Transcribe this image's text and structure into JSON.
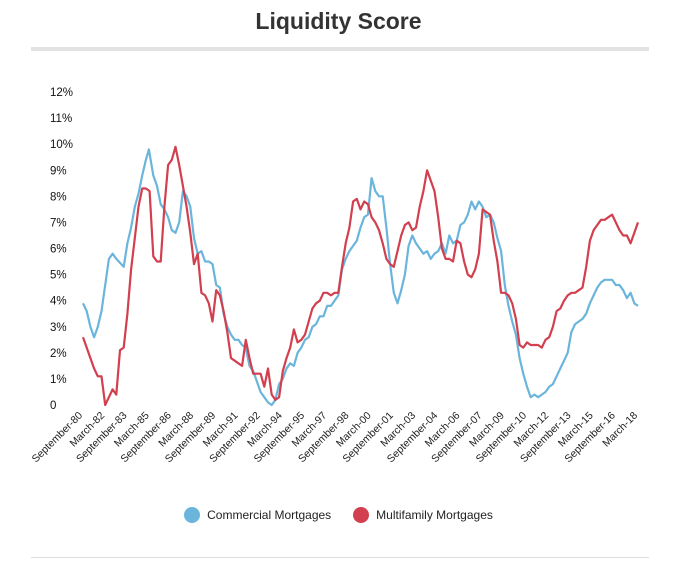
{
  "chart_data": {
    "type": "line",
    "title": "Liquidity Score",
    "xlabel": "",
    "ylabel": "",
    "ylim": [
      0,
      12
    ],
    "yticks": [
      "0",
      "1%",
      "2%",
      "3%",
      "4%",
      "5%",
      "6%",
      "7%",
      "8%",
      "9%",
      "10%",
      "11%",
      "12%"
    ],
    "xticks": [
      "September-80",
      "March-82",
      "September-83",
      "March-85",
      "September-86",
      "March-88",
      "September-89",
      "March-91",
      "September-92",
      "March-94",
      "September-95",
      "March-97",
      "September-98",
      "March-00",
      "September-01",
      "March-03",
      "September-04",
      "March-06",
      "September-07",
      "March-09",
      "September-10",
      "March-12",
      "September-13",
      "March-15",
      "September-16",
      "March-18"
    ],
    "x_range": [
      1980.75,
      2018.25
    ],
    "legend": "bottom",
    "grid": false,
    "series": [
      {
        "name": "Commercial Mortgages",
        "color": "#6bb5dc",
        "points": [
          [
            1980.75,
            3.9
          ],
          [
            1981.0,
            3.6
          ],
          [
            1981.25,
            3.0
          ],
          [
            1981.5,
            2.6
          ],
          [
            1981.75,
            3.0
          ],
          [
            1982.0,
            3.6
          ],
          [
            1982.25,
            4.6
          ],
          [
            1982.5,
            5.6
          ],
          [
            1982.75,
            5.8
          ],
          [
            1983.0,
            5.6
          ],
          [
            1983.5,
            5.3
          ],
          [
            1983.75,
            6.2
          ],
          [
            1984.0,
            6.8
          ],
          [
            1984.25,
            7.6
          ],
          [
            1984.5,
            8.1
          ],
          [
            1984.75,
            8.8
          ],
          [
            1985.0,
            9.4
          ],
          [
            1985.2,
            9.8
          ],
          [
            1985.5,
            8.8
          ],
          [
            1985.75,
            8.4
          ],
          [
            1986.0,
            7.7
          ],
          [
            1986.25,
            7.5
          ],
          [
            1986.5,
            7.2
          ],
          [
            1986.75,
            6.7
          ],
          [
            1987.0,
            6.6
          ],
          [
            1987.25,
            7.0
          ],
          [
            1987.5,
            8.2
          ],
          [
            1987.75,
            8.0
          ],
          [
            1988.0,
            7.6
          ],
          [
            1988.25,
            6.4
          ],
          [
            1988.5,
            5.8
          ],
          [
            1988.75,
            5.9
          ],
          [
            1989.0,
            5.5
          ],
          [
            1989.25,
            5.5
          ],
          [
            1989.5,
            5.4
          ],
          [
            1989.75,
            4.6
          ],
          [
            1990.0,
            4.5
          ],
          [
            1990.25,
            3.5
          ],
          [
            1990.5,
            3.0
          ],
          [
            1990.75,
            2.7
          ],
          [
            1991.0,
            2.5
          ],
          [
            1991.25,
            2.5
          ],
          [
            1991.5,
            2.3
          ],
          [
            1991.75,
            2.2
          ],
          [
            1992.0,
            1.5
          ],
          [
            1992.25,
            1.3
          ],
          [
            1992.5,
            0.9
          ],
          [
            1992.75,
            0.5
          ],
          [
            1993.0,
            0.3
          ],
          [
            1993.25,
            0.1
          ],
          [
            1993.5,
            0.0
          ],
          [
            1993.75,
            0.2
          ],
          [
            1994.0,
            0.8
          ],
          [
            1994.25,
            1.0
          ],
          [
            1994.5,
            1.4
          ],
          [
            1994.75,
            1.6
          ],
          [
            1995.0,
            1.5
          ],
          [
            1995.25,
            2.0
          ],
          [
            1995.5,
            2.2
          ],
          [
            1995.75,
            2.5
          ],
          [
            1996.0,
            2.6
          ],
          [
            1996.25,
            3.0
          ],
          [
            1996.5,
            3.1
          ],
          [
            1996.75,
            3.4
          ],
          [
            1997.0,
            3.4
          ],
          [
            1997.25,
            3.8
          ],
          [
            1997.5,
            3.8
          ],
          [
            1997.75,
            4.0
          ],
          [
            1998.0,
            4.2
          ],
          [
            1998.25,
            5.2
          ],
          [
            1998.5,
            5.6
          ],
          [
            1998.75,
            5.9
          ],
          [
            1999.0,
            6.1
          ],
          [
            1999.25,
            6.3
          ],
          [
            1999.5,
            6.8
          ],
          [
            1999.75,
            7.2
          ],
          [
            2000.0,
            7.3
          ],
          [
            2000.25,
            8.7
          ],
          [
            2000.5,
            8.2
          ],
          [
            2000.75,
            8.0
          ],
          [
            2001.0,
            8.0
          ],
          [
            2001.25,
            6.8
          ],
          [
            2001.5,
            5.4
          ],
          [
            2001.75,
            4.3
          ],
          [
            2002.0,
            3.9
          ],
          [
            2002.25,
            4.4
          ],
          [
            2002.5,
            5.0
          ],
          [
            2002.75,
            6.1
          ],
          [
            2003.0,
            6.5
          ],
          [
            2003.25,
            6.2
          ],
          [
            2003.5,
            6.0
          ],
          [
            2003.75,
            5.8
          ],
          [
            2004.0,
            5.9
          ],
          [
            2004.25,
            5.6
          ],
          [
            2004.5,
            5.8
          ],
          [
            2004.75,
            5.9
          ],
          [
            2005.0,
            6.2
          ],
          [
            2005.25,
            5.8
          ],
          [
            2005.5,
            6.5
          ],
          [
            2005.75,
            6.2
          ],
          [
            2006.0,
            6.3
          ],
          [
            2006.25,
            6.9
          ],
          [
            2006.5,
            7.0
          ],
          [
            2006.75,
            7.3
          ],
          [
            2007.0,
            7.8
          ],
          [
            2007.25,
            7.5
          ],
          [
            2007.5,
            7.8
          ],
          [
            2007.75,
            7.6
          ],
          [
            2008.0,
            7.2
          ],
          [
            2008.25,
            7.3
          ],
          [
            2008.5,
            7.0
          ],
          [
            2008.75,
            6.4
          ],
          [
            2009.0,
            5.9
          ],
          [
            2009.25,
            4.6
          ],
          [
            2009.5,
            3.8
          ],
          [
            2009.75,
            3.2
          ],
          [
            2010.0,
            2.7
          ],
          [
            2010.25,
            1.8
          ],
          [
            2010.5,
            1.2
          ],
          [
            2010.75,
            0.7
          ],
          [
            2011.0,
            0.3
          ],
          [
            2011.25,
            0.4
          ],
          [
            2011.5,
            0.3
          ],
          [
            2011.75,
            0.4
          ],
          [
            2012.0,
            0.5
          ],
          [
            2012.25,
            0.7
          ],
          [
            2012.5,
            0.8
          ],
          [
            2012.75,
            1.1
          ],
          [
            2013.0,
            1.4
          ],
          [
            2013.25,
            1.7
          ],
          [
            2013.5,
            2.0
          ],
          [
            2013.75,
            2.8
          ],
          [
            2014.0,
            3.1
          ],
          [
            2014.25,
            3.2
          ],
          [
            2014.5,
            3.3
          ],
          [
            2014.75,
            3.5
          ],
          [
            2015.0,
            3.9
          ],
          [
            2015.25,
            4.2
          ],
          [
            2015.5,
            4.5
          ],
          [
            2015.75,
            4.7
          ],
          [
            2016.0,
            4.8
          ],
          [
            2016.25,
            4.8
          ],
          [
            2016.5,
            4.8
          ],
          [
            2016.75,
            4.6
          ],
          [
            2017.0,
            4.6
          ],
          [
            2017.25,
            4.4
          ],
          [
            2017.5,
            4.1
          ],
          [
            2017.75,
            4.3
          ],
          [
            2018.0,
            3.9
          ],
          [
            2018.25,
            3.8
          ]
        ]
      },
      {
        "name": "Multifamily Mortgages",
        "color": "#d23f4e",
        "points": [
          [
            1980.75,
            2.6
          ],
          [
            1981.0,
            2.2
          ],
          [
            1981.25,
            1.8
          ],
          [
            1981.5,
            1.4
          ],
          [
            1981.75,
            1.1
          ],
          [
            1982.0,
            1.1
          ],
          [
            1982.25,
            0.0
          ],
          [
            1982.5,
            0.3
          ],
          [
            1982.75,
            0.6
          ],
          [
            1983.0,
            0.4
          ],
          [
            1983.25,
            2.1
          ],
          [
            1983.5,
            2.2
          ],
          [
            1983.75,
            3.5
          ],
          [
            1984.0,
            5.2
          ],
          [
            1984.25,
            6.4
          ],
          [
            1984.5,
            7.6
          ],
          [
            1984.75,
            8.3
          ],
          [
            1985.0,
            8.3
          ],
          [
            1985.25,
            8.2
          ],
          [
            1985.5,
            5.7
          ],
          [
            1985.75,
            5.5
          ],
          [
            1986.0,
            5.5
          ],
          [
            1986.25,
            7.6
          ],
          [
            1986.5,
            9.2
          ],
          [
            1986.75,
            9.4
          ],
          [
            1987.0,
            9.9
          ],
          [
            1987.25,
            9.2
          ],
          [
            1987.5,
            8.4
          ],
          [
            1987.75,
            7.6
          ],
          [
            1988.0,
            6.6
          ],
          [
            1988.25,
            5.4
          ],
          [
            1988.5,
            5.8
          ],
          [
            1988.75,
            4.3
          ],
          [
            1989.0,
            4.2
          ],
          [
            1989.25,
            3.9
          ],
          [
            1989.5,
            3.2
          ],
          [
            1989.75,
            4.4
          ],
          [
            1990.0,
            4.2
          ],
          [
            1990.25,
            3.6
          ],
          [
            1990.5,
            2.8
          ],
          [
            1990.75,
            1.8
          ],
          [
            1991.0,
            1.7
          ],
          [
            1991.25,
            1.6
          ],
          [
            1991.5,
            1.5
          ],
          [
            1991.75,
            2.5
          ],
          [
            1992.0,
            1.8
          ],
          [
            1992.25,
            1.2
          ],
          [
            1992.5,
            1.2
          ],
          [
            1992.75,
            1.2
          ],
          [
            1993.0,
            0.7
          ],
          [
            1993.25,
            1.4
          ],
          [
            1993.5,
            0.4
          ],
          [
            1993.75,
            0.2
          ],
          [
            1994.0,
            0.3
          ],
          [
            1994.25,
            1.3
          ],
          [
            1994.5,
            1.8
          ],
          [
            1994.75,
            2.2
          ],
          [
            1995.0,
            2.9
          ],
          [
            1995.25,
            2.4
          ],
          [
            1995.5,
            2.5
          ],
          [
            1995.75,
            2.7
          ],
          [
            1996.0,
            3.2
          ],
          [
            1996.25,
            3.7
          ],
          [
            1996.5,
            3.9
          ],
          [
            1996.75,
            4.0
          ],
          [
            1997.0,
            4.3
          ],
          [
            1997.25,
            4.3
          ],
          [
            1997.5,
            4.2
          ],
          [
            1997.75,
            4.3
          ],
          [
            1998.0,
            4.3
          ],
          [
            1998.25,
            5.3
          ],
          [
            1998.5,
            6.2
          ],
          [
            1998.75,
            6.8
          ],
          [
            1999.0,
            7.8
          ],
          [
            1999.25,
            7.9
          ],
          [
            1999.5,
            7.5
          ],
          [
            1999.75,
            7.8
          ],
          [
            2000.0,
            7.7
          ],
          [
            2000.25,
            7.2
          ],
          [
            2000.5,
            7.0
          ],
          [
            2000.75,
            6.7
          ],
          [
            2001.0,
            6.2
          ],
          [
            2001.25,
            5.6
          ],
          [
            2001.5,
            5.4
          ],
          [
            2001.75,
            5.3
          ],
          [
            2002.0,
            5.9
          ],
          [
            2002.25,
            6.5
          ],
          [
            2002.5,
            6.9
          ],
          [
            2002.75,
            7.0
          ],
          [
            2003.0,
            6.7
          ],
          [
            2003.25,
            6.8
          ],
          [
            2003.5,
            7.6
          ],
          [
            2003.75,
            8.2
          ],
          [
            2004.0,
            9.0
          ],
          [
            2004.25,
            8.6
          ],
          [
            2004.5,
            8.2
          ],
          [
            2004.75,
            7.2
          ],
          [
            2005.0,
            6.0
          ],
          [
            2005.25,
            5.6
          ],
          [
            2005.5,
            5.6
          ],
          [
            2005.75,
            5.5
          ],
          [
            2006.0,
            6.3
          ],
          [
            2006.25,
            6.2
          ],
          [
            2006.5,
            5.5
          ],
          [
            2006.75,
            5.0
          ],
          [
            2007.0,
            4.9
          ],
          [
            2007.25,
            5.2
          ],
          [
            2007.5,
            5.8
          ],
          [
            2007.75,
            7.5
          ],
          [
            2008.0,
            7.4
          ],
          [
            2008.25,
            7.3
          ],
          [
            2008.5,
            6.3
          ],
          [
            2008.75,
            5.5
          ],
          [
            2009.0,
            4.3
          ],
          [
            2009.25,
            4.3
          ],
          [
            2009.5,
            4.2
          ],
          [
            2009.75,
            3.9
          ],
          [
            2010.0,
            3.3
          ],
          [
            2010.25,
            2.3
          ],
          [
            2010.5,
            2.2
          ],
          [
            2010.75,
            2.4
          ],
          [
            2011.0,
            2.3
          ],
          [
            2011.25,
            2.3
          ],
          [
            2011.5,
            2.3
          ],
          [
            2011.75,
            2.2
          ],
          [
            2012.0,
            2.5
          ],
          [
            2012.25,
            2.6
          ],
          [
            2012.5,
            3.0
          ],
          [
            2012.75,
            3.6
          ],
          [
            2013.0,
            3.7
          ],
          [
            2013.25,
            4.0
          ],
          [
            2013.5,
            4.2
          ],
          [
            2013.75,
            4.3
          ],
          [
            2014.0,
            4.3
          ],
          [
            2014.25,
            4.4
          ],
          [
            2014.5,
            4.5
          ],
          [
            2014.75,
            5.3
          ],
          [
            2015.0,
            6.3
          ],
          [
            2015.25,
            6.7
          ],
          [
            2015.5,
            6.9
          ],
          [
            2015.75,
            7.1
          ],
          [
            2016.0,
            7.1
          ],
          [
            2016.25,
            7.2
          ],
          [
            2016.5,
            7.3
          ],
          [
            2016.75,
            7.0
          ],
          [
            2017.0,
            6.7
          ],
          [
            2017.25,
            6.5
          ],
          [
            2017.5,
            6.5
          ],
          [
            2017.75,
            6.2
          ],
          [
            2018.0,
            6.6
          ],
          [
            2018.25,
            7.0
          ]
        ]
      }
    ]
  }
}
